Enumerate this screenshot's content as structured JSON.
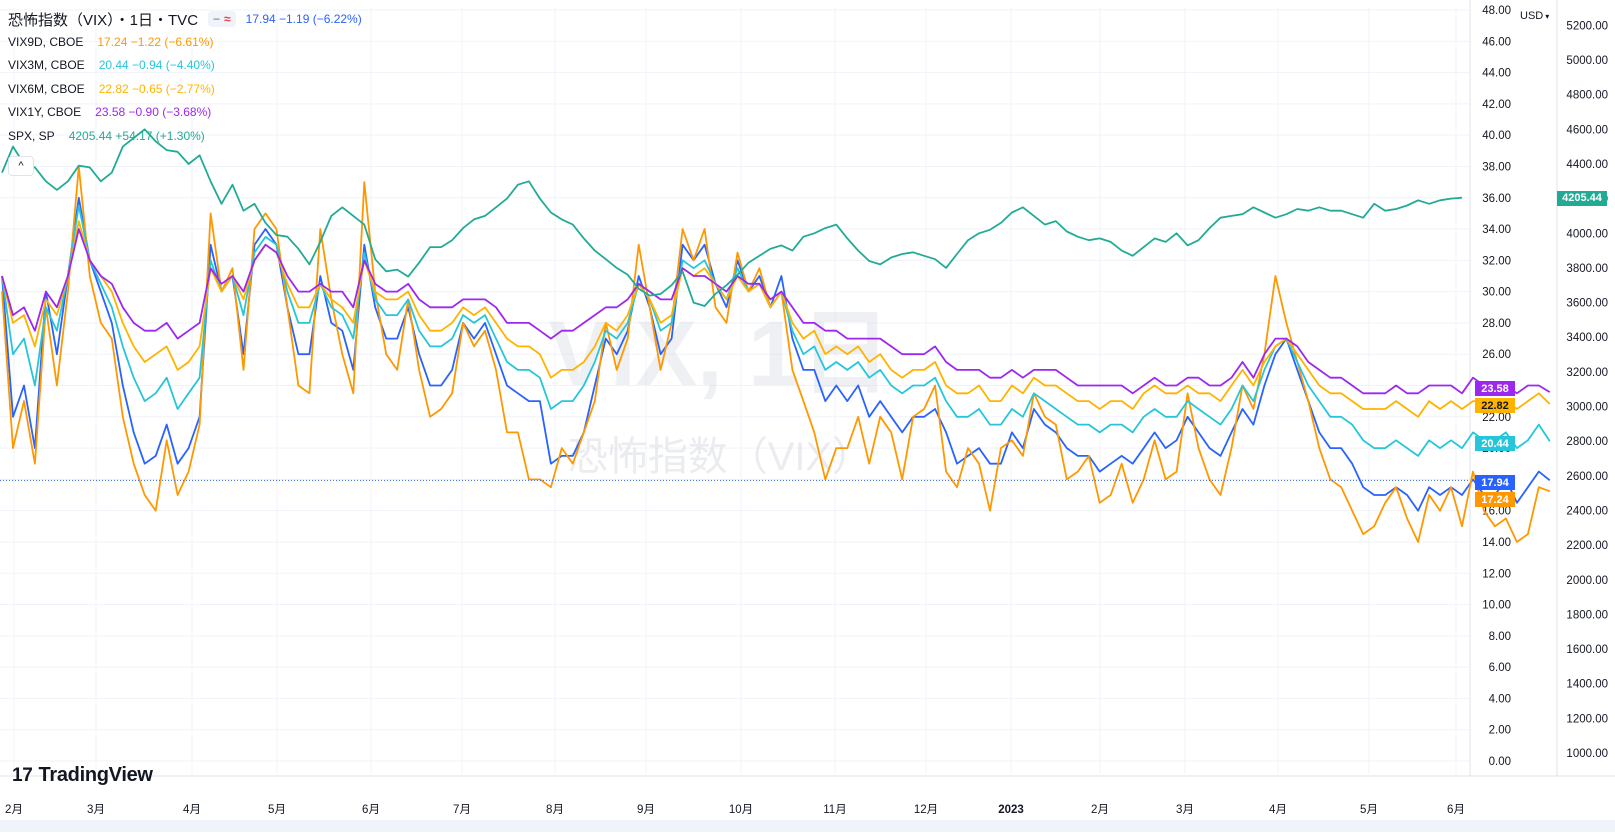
{
  "header": {
    "title": "恐怖指数（VIX）・1日・TVC",
    "main_quote": "17.94 −1.19 (−6.22%)",
    "main_color": "#2962ff",
    "pill_left": "−",
    "pill_right": "≈"
  },
  "legend": [
    {
      "name": "VIX9D, CBOE",
      "quote": "17.24 −1.22 (−6.61%)",
      "color": "#ff9800"
    },
    {
      "name": "VIX3M, CBOE",
      "quote": "20.44 −0.94 (−4.40%)",
      "color": "#26c6da"
    },
    {
      "name": "VIX6M, CBOE",
      "quote": "22.82 −0.65 (−2.77%)",
      "color": "#ffb300"
    },
    {
      "name": "VIX1Y, CBOE",
      "quote": "23.58 −0.90 (−3.68%)",
      "color": "#9c27f0"
    },
    {
      "name": "SPX, SP",
      "quote": "4205.44 +54.17 (+1.30%)",
      "color": "#22ab94"
    }
  ],
  "collapse_icon": "^",
  "watermark": {
    "line1": "VIX, 1日",
    "line2": "恐怖指数（VIX）"
  },
  "logo": {
    "mark": "17",
    "text": "TradingView"
  },
  "currency": "USD",
  "chart_data": {
    "type": "line",
    "x_ticks": [
      "2月",
      "3月",
      "4月",
      "5月",
      "6月",
      "7月",
      "8月",
      "9月",
      "10月",
      "11月",
      "12月",
      "2023",
      "2月",
      "3月",
      "4月",
      "5月",
      "6月"
    ],
    "x_tick_bold": [
      false,
      false,
      false,
      false,
      false,
      false,
      false,
      false,
      false,
      false,
      false,
      true,
      false,
      false,
      false,
      false,
      false
    ],
    "y_left": {
      "ticks": [
        "0.00",
        "2.00",
        "4.00",
        "6.00",
        "8.00",
        "10.00",
        "12.00",
        "14.00",
        "16.00",
        "18.00",
        "20.00",
        "22.00",
        "24.00",
        "26.00",
        "28.00",
        "30.00",
        "32.00",
        "34.00",
        "36.00",
        "38.00",
        "40.00",
        "42.00",
        "44.00",
        "46.00",
        "48.00"
      ],
      "range": [
        0,
        48
      ]
    },
    "y_right": {
      "ticks": [
        "1000.00",
        "1200.00",
        "1400.00",
        "1600.00",
        "1800.00",
        "2000.00",
        "2200.00",
        "2400.00",
        "2600.00",
        "2800.00",
        "3000.00",
        "3200.00",
        "3400.00",
        "3600.00",
        "3800.00",
        "4000.00",
        "4200.00",
        "4400.00",
        "4600.00",
        "4800.00",
        "5000.00",
        "5200.00"
      ],
      "range": [
        850,
        5300
      ]
    },
    "series": [
      {
        "name": "VIX",
        "color": "#2962ff",
        "last": 17.94,
        "last_label": "17.94",
        "values": [
          31.0,
          22.0,
          24.0,
          20.0,
          30.0,
          26.0,
          31.0,
          36.0,
          32.0,
          30.0,
          28.0,
          24.0,
          21.0,
          19.0,
          19.5,
          21.5,
          19.0,
          20.0,
          22.0,
          33.0,
          30.0,
          31.0,
          26.0,
          33.0,
          34.0,
          33.0,
          29.0,
          26.0,
          26.0,
          31.0,
          28.0,
          27.5,
          25.0,
          33.0,
          29.0,
          27.0,
          27.0,
          29.0,
          26.0,
          24.0,
          24.0,
          25.0,
          28.0,
          27.0,
          28.0,
          26.0,
          24.0,
          23.5,
          23.0,
          23.0,
          19.0,
          19.5,
          19.5,
          21.0,
          24.0,
          27.0,
          26.0,
          27.5,
          31.0,
          29.0,
          26.0,
          27.0,
          33.0,
          32.0,
          33.0,
          30.5,
          29.0,
          32.0,
          30.0,
          31.0,
          29.0,
          31.0,
          27.0,
          25.0,
          25.0,
          23.0,
          24.0,
          23.0,
          24.0,
          22.0,
          23.0,
          22.0,
          21.0,
          22.0,
          22.0,
          22.5,
          21.0,
          19.0,
          19.5,
          20.0,
          19.0,
          19.0,
          21.0,
          20.0,
          22.5,
          21.5,
          21.0,
          20.0,
          19.5,
          19.5,
          18.5,
          19.0,
          19.5,
          19.0,
          20.0,
          21.0,
          20.0,
          20.5,
          22.0,
          21.0,
          20.0,
          19.5,
          21.0,
          22.5,
          21.5,
          24.0,
          26.0,
          27.0,
          25.0,
          23.0,
          21.0,
          20.0,
          20.0,
          19.0,
          17.5,
          17.0,
          17.0,
          17.5,
          17.0,
          16.0,
          17.5,
          17.0,
          17.5,
          17.0,
          18.0,
          17.0,
          17.0,
          18.0,
          16.5,
          17.5,
          18.5,
          17.94
        ]
      },
      {
        "name": "VIX9D, CBOE",
        "color": "#ff9800",
        "last": 17.24,
        "last_label": "17.24",
        "values": [
          30.0,
          20.0,
          23.0,
          19.0,
          29.0,
          24.0,
          30.0,
          38.0,
          31.0,
          28.0,
          27.0,
          22.0,
          19.0,
          17.0,
          16.0,
          20.5,
          17.0,
          18.5,
          21.5,
          35.0,
          30.0,
          31.5,
          25.0,
          34.0,
          35.0,
          34.0,
          29.0,
          24.0,
          23.5,
          34.0,
          29.5,
          26.0,
          23.5,
          37.0,
          30.0,
          26.0,
          25.0,
          29.5,
          25.0,
          22.0,
          22.5,
          23.5,
          28.0,
          26.5,
          27.5,
          25.0,
          21.0,
          21.0,
          18.0,
          18.0,
          17.5,
          20.0,
          19.0,
          21.0,
          23.0,
          28.0,
          25.0,
          27.0,
          33.0,
          29.0,
          25.0,
          28.0,
          34.0,
          32.0,
          34.0,
          29.0,
          28.0,
          32.5,
          30.0,
          31.5,
          29.0,
          30.0,
          25.0,
          23.0,
          21.0,
          18.0,
          20.0,
          20.0,
          22.0,
          19.0,
          22.0,
          21.0,
          18.0,
          22.0,
          22.5,
          24.0,
          18.5,
          17.5,
          20.0,
          19.0,
          16.0,
          20.0,
          20.5,
          19.5,
          23.5,
          22.0,
          21.5,
          18.0,
          18.5,
          19.5,
          16.5,
          17.0,
          19.0,
          16.5,
          18.0,
          20.5,
          18.0,
          18.5,
          23.5,
          20.0,
          18.0,
          17.0,
          20.0,
          24.0,
          22.5,
          26.0,
          31.0,
          28.0,
          25.5,
          23.0,
          20.0,
          18.0,
          17.5,
          16.0,
          14.5,
          15.0,
          16.5,
          17.5,
          15.5,
          14.0,
          17.0,
          16.0,
          17.5,
          15.0,
          18.5,
          16.0,
          15.0,
          15.5,
          14.0,
          14.5,
          17.5,
          17.24
        ]
      },
      {
        "name": "VIX3M, CBOE",
        "color": "#26c6da",
        "last": 20.44,
        "last_label": "20.44",
        "values": [
          31.0,
          26.0,
          27.0,
          24.0,
          29.0,
          27.5,
          31.0,
          35.5,
          32.0,
          30.5,
          29.0,
          26.5,
          24.5,
          23.0,
          23.5,
          24.5,
          22.5,
          23.5,
          24.5,
          32.0,
          30.0,
          31.0,
          28.5,
          32.5,
          33.5,
          33.0,
          30.0,
          28.0,
          28.0,
          30.5,
          29.0,
          28.5,
          27.0,
          32.5,
          29.5,
          28.5,
          28.5,
          29.5,
          27.5,
          26.5,
          26.5,
          27.0,
          28.5,
          28.0,
          28.5,
          27.0,
          25.5,
          25.0,
          25.0,
          24.5,
          22.5,
          23.0,
          23.0,
          24.0,
          25.5,
          27.5,
          27.0,
          28.0,
          30.5,
          29.5,
          27.5,
          28.0,
          32.0,
          31.5,
          32.0,
          30.5,
          29.5,
          31.5,
          30.0,
          30.5,
          29.0,
          30.0,
          27.5,
          26.0,
          26.5,
          25.0,
          25.5,
          25.0,
          25.5,
          24.5,
          25.0,
          24.0,
          23.5,
          24.0,
          24.0,
          24.5,
          23.0,
          22.0,
          22.0,
          22.5,
          21.5,
          21.5,
          22.5,
          22.0,
          23.5,
          23.0,
          22.5,
          22.0,
          21.5,
          21.5,
          21.0,
          21.5,
          21.5,
          21.0,
          22.0,
          22.5,
          22.0,
          22.0,
          23.0,
          22.5,
          22.0,
          21.5,
          22.5,
          24.0,
          23.0,
          25.0,
          26.5,
          27.0,
          25.5,
          24.0,
          23.0,
          22.0,
          22.0,
          21.5,
          20.5,
          20.0,
          20.0,
          20.5,
          20.0,
          19.5,
          20.5,
          20.0,
          20.5,
          20.0,
          21.0,
          20.5,
          20.5,
          21.0,
          20.0,
          20.5,
          21.5,
          20.44
        ]
      },
      {
        "name": "VIX6M, CBOE",
        "color": "#ffb300",
        "last": 22.82,
        "last_label": "22.82",
        "values": [
          31.0,
          28.0,
          28.5,
          26.5,
          29.5,
          28.5,
          31.0,
          34.5,
          32.0,
          31.0,
          30.0,
          28.0,
          26.5,
          25.5,
          26.0,
          26.5,
          25.0,
          25.5,
          26.5,
          31.5,
          30.0,
          31.0,
          29.5,
          32.0,
          33.0,
          32.5,
          30.5,
          29.0,
          29.0,
          30.5,
          29.5,
          29.0,
          28.0,
          32.0,
          30.0,
          29.5,
          29.5,
          30.0,
          28.5,
          27.5,
          27.5,
          28.0,
          29.0,
          28.5,
          29.0,
          28.0,
          27.0,
          26.5,
          26.5,
          26.0,
          24.5,
          25.0,
          25.0,
          25.5,
          26.5,
          28.0,
          27.5,
          28.5,
          30.5,
          29.5,
          28.0,
          28.5,
          31.5,
          31.0,
          31.5,
          30.5,
          29.5,
          31.0,
          30.0,
          30.5,
          29.0,
          30.0,
          28.0,
          27.0,
          27.5,
          26.0,
          26.5,
          26.0,
          26.5,
          25.5,
          26.0,
          25.0,
          24.5,
          25.0,
          25.0,
          25.5,
          24.0,
          23.5,
          23.5,
          24.0,
          23.0,
          23.0,
          24.0,
          23.5,
          24.5,
          24.0,
          24.0,
          23.5,
          23.0,
          23.0,
          22.5,
          23.0,
          23.0,
          22.5,
          23.5,
          24.0,
          23.5,
          23.5,
          24.0,
          23.5,
          23.5,
          23.0,
          24.0,
          25.0,
          24.0,
          25.5,
          26.5,
          27.0,
          26.0,
          25.0,
          24.0,
          23.5,
          23.5,
          23.0,
          22.5,
          22.5,
          22.5,
          23.0,
          22.5,
          22.0,
          23.0,
          22.5,
          23.0,
          22.5,
          23.0,
          23.0,
          22.5,
          23.0,
          22.5,
          23.0,
          23.5,
          22.82
        ]
      },
      {
        "name": "VIX1Y, CBOE",
        "color": "#9c27f0",
        "last": 23.58,
        "last_label": "23.58",
        "values": [
          31.0,
          28.5,
          29.0,
          27.5,
          30.0,
          29.0,
          31.0,
          34.0,
          32.0,
          31.0,
          30.5,
          29.0,
          28.0,
          27.5,
          27.5,
          28.0,
          27.0,
          27.5,
          28.0,
          31.5,
          30.5,
          31.0,
          30.0,
          32.0,
          33.0,
          32.5,
          31.0,
          30.0,
          30.0,
          30.5,
          30.0,
          30.0,
          29.0,
          32.0,
          30.5,
          30.0,
          30.0,
          30.5,
          29.5,
          29.0,
          29.0,
          29.0,
          29.5,
          29.5,
          29.5,
          29.0,
          28.0,
          28.0,
          28.0,
          27.5,
          27.0,
          27.5,
          27.5,
          28.0,
          28.5,
          29.0,
          29.0,
          29.5,
          30.5,
          30.0,
          29.5,
          29.5,
          31.5,
          31.0,
          31.0,
          30.5,
          30.0,
          31.0,
          30.5,
          30.5,
          29.5,
          30.0,
          29.0,
          28.0,
          28.0,
          27.5,
          27.5,
          27.0,
          27.0,
          27.0,
          27.0,
          26.5,
          26.0,
          26.0,
          26.0,
          26.5,
          25.5,
          25.0,
          25.0,
          25.0,
          24.5,
          24.5,
          25.0,
          24.5,
          25.0,
          25.0,
          25.0,
          24.5,
          24.0,
          24.0,
          24.0,
          24.0,
          24.0,
          23.5,
          24.0,
          24.5,
          24.0,
          24.0,
          24.5,
          24.5,
          24.0,
          24.0,
          24.5,
          25.5,
          24.5,
          26.0,
          27.0,
          27.0,
          26.5,
          25.5,
          25.0,
          24.5,
          24.5,
          24.0,
          23.5,
          23.5,
          23.5,
          24.0,
          23.5,
          23.5,
          24.0,
          24.0,
          24.0,
          23.5,
          24.5,
          24.0,
          24.0,
          24.0,
          23.5,
          24.0,
          24.0,
          23.58
        ]
      },
      {
        "name": "SPX, SP",
        "color": "#22ab94",
        "last": 4205.44,
        "last_label": "4205.44",
        "axis": "right",
        "values": [
          4350,
          4500,
          4400,
          4380,
          4300,
          4250,
          4300,
          4390,
          4380,
          4300,
          4350,
          4500,
          4550,
          4600,
          4530,
          4480,
          4470,
          4400,
          4450,
          4300,
          4170,
          4280,
          4130,
          4170,
          4060,
          3990,
          3980,
          3910,
          3820,
          3950,
          4100,
          4150,
          4100,
          4050,
          3850,
          3780,
          3790,
          3750,
          3830,
          3920,
          3920,
          3960,
          4030,
          4080,
          4100,
          4150,
          4200,
          4280,
          4300,
          4200,
          4120,
          4080,
          4050,
          3970,
          3900,
          3850,
          3800,
          3760,
          3680,
          3640,
          3650,
          3700,
          3780,
          3600,
          3580,
          3650,
          3700,
          3760,
          3830,
          3870,
          3910,
          3930,
          3900,
          3980,
          4000,
          4030,
          4050,
          3970,
          3900,
          3840,
          3820,
          3860,
          3880,
          3890,
          3870,
          3850,
          3800,
          3880,
          3960,
          4000,
          4020,
          4060,
          4120,
          4150,
          4100,
          4050,
          4070,
          4010,
          3980,
          3960,
          3970,
          3950,
          3900,
          3870,
          3920,
          3970,
          3950,
          4000,
          3930,
          3960,
          4030,
          4090,
          4100,
          4110,
          4150,
          4120,
          4090,
          4110,
          4140,
          4130,
          4150,
          4130,
          4130,
          4110,
          4090,
          4170,
          4130,
          4140,
          4160,
          4190,
          4170,
          4190,
          4200,
          4205.44
        ]
      }
    ],
    "watermark": "VIX, 1日"
  }
}
